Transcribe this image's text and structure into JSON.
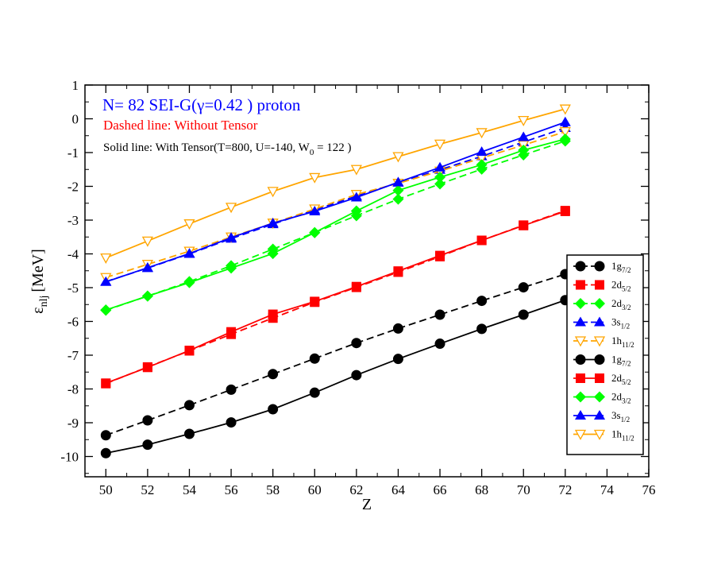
{
  "chart_data": {
    "type": "line",
    "title": "",
    "xlabel": "Z",
    "ylabel": "ε",
    "ylabel_sub": "nlj",
    "ylabel_unit": "[MeV]",
    "xlim": [
      49,
      76
    ],
    "ylim": [
      -10.6,
      1
    ],
    "x_ticks": [
      50,
      52,
      54,
      56,
      58,
      60,
      62,
      64,
      66,
      68,
      70,
      72,
      74,
      76
    ],
    "y_ticks": [
      1,
      0,
      -1,
      -2,
      -3,
      -4,
      -5,
      -6,
      -7,
      -8,
      -9,
      -10
    ],
    "grid": false,
    "legend_position": "right",
    "annotations": {
      "line1": "N= 82  SEI-G(γ=0.42 )  proton",
      "line2": "Dashed line: Without Tensor",
      "line3_pre": "Solid line: With Tensor(T=800, U=-140, W",
      "line3_sub": "0",
      "line3_post": " = 122 )"
    },
    "colors": {
      "line1": "#0000ff",
      "line2": "#ff0000",
      "line3": "#000000"
    },
    "x": [
      50,
      52,
      54,
      56,
      58,
      60,
      62,
      64,
      66,
      68,
      70,
      72
    ],
    "series": [
      {
        "name": "1g",
        "sub": "7/2",
        "style": "dashed",
        "marker": "circle",
        "color": "#000000",
        "values": [
          -9.37,
          -8.93,
          -8.48,
          -8.02,
          -7.56,
          -7.1,
          -6.64,
          -6.21,
          -5.8,
          -5.39,
          -4.99,
          -4.6
        ]
      },
      {
        "name": "2d",
        "sub": "5/2",
        "style": "dashed",
        "marker": "square",
        "color": "#ff0000",
        "values": [
          -7.84,
          -7.35,
          -6.87,
          -6.38,
          -5.9,
          -5.43,
          -4.99,
          -4.54,
          -4.08,
          -3.6,
          -3.15,
          -2.72
        ]
      },
      {
        "name": "2d",
        "sub": "3/2",
        "style": "dashed",
        "marker": "diamond",
        "color": "#00ff00",
        "values": [
          -5.67,
          -5.25,
          -4.82,
          -4.35,
          -3.86,
          -3.37,
          -2.87,
          -2.38,
          -1.93,
          -1.49,
          -1.07,
          -0.66
        ]
      },
      {
        "name": "3s",
        "sub": "1/2",
        "style": "dashed",
        "marker": "triangle-up",
        "color": "#0000ff",
        "values": [
          -4.82,
          -4.42,
          -4.0,
          -3.55,
          -3.12,
          -2.7,
          -2.29,
          -1.89,
          -1.51,
          -1.11,
          -0.69,
          -0.27
        ]
      },
      {
        "name": "1h",
        "sub": "11/2",
        "style": "dashed",
        "marker": "triangle-down",
        "color": "#ffa500",
        "values": [
          -4.7,
          -4.31,
          -3.92,
          -3.5,
          -3.09,
          -2.67,
          -2.24,
          -1.91,
          -1.55,
          -1.16,
          -0.78,
          -0.38
        ]
      },
      {
        "name": "1g",
        "sub": "7/2",
        "style": "solid",
        "marker": "circle",
        "color": "#000000",
        "values": [
          -9.9,
          -9.65,
          -9.33,
          -8.99,
          -8.6,
          -8.11,
          -7.59,
          -7.11,
          -6.66,
          -6.22,
          -5.8,
          -5.37
        ]
      },
      {
        "name": "2d",
        "sub": "5/2",
        "style": "solid",
        "marker": "square",
        "color": "#ff0000",
        "values": [
          -7.83,
          -7.36,
          -6.86,
          -6.31,
          -5.79,
          -5.41,
          -4.97,
          -4.51,
          -4.05,
          -3.6,
          -3.16,
          -2.74
        ]
      },
      {
        "name": "2d",
        "sub": "3/2",
        "style": "solid",
        "marker": "diamond",
        "color": "#00ff00",
        "values": [
          -5.66,
          -5.25,
          -4.85,
          -4.42,
          -3.99,
          -3.37,
          -2.73,
          -2.12,
          -1.73,
          -1.36,
          -0.93,
          -0.6
        ]
      },
      {
        "name": "3s",
        "sub": "1/2",
        "style": "solid",
        "marker": "triangle-up",
        "color": "#0000ff",
        "values": [
          -4.83,
          -4.41,
          -3.99,
          -3.52,
          -3.09,
          -2.74,
          -2.33,
          -1.88,
          -1.44,
          -0.98,
          -0.54,
          -0.1
        ]
      },
      {
        "name": "1h",
        "sub": "11/2",
        "style": "solid",
        "marker": "triangle-down",
        "color": "#ffa500",
        "values": [
          -4.12,
          -3.62,
          -3.11,
          -2.62,
          -2.15,
          -1.74,
          -1.5,
          -1.12,
          -0.75,
          -0.41,
          -0.05,
          0.29
        ]
      }
    ]
  }
}
